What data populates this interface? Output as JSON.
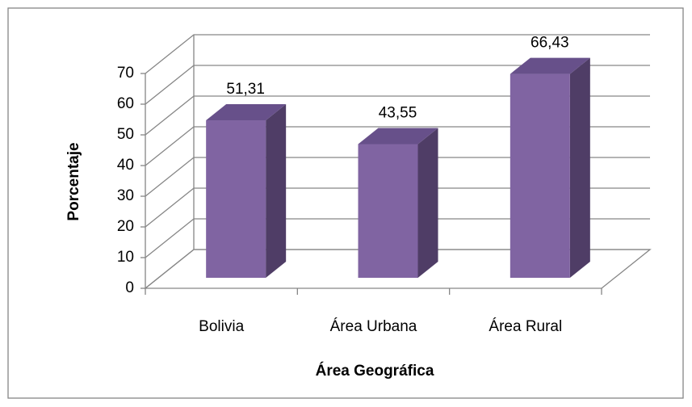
{
  "chart_data": {
    "type": "bar",
    "x_label": "Área Geográfica",
    "y_label": "Porcentaje",
    "categories": [
      "Bolivia",
      "Área Urbana",
      "Área Rural"
    ],
    "values": [
      51.31,
      43.55,
      66.43
    ],
    "value_labels": [
      "51,31",
      "43,55",
      "66,43"
    ],
    "color": "#8064a2",
    "ylim": [
      0,
      70
    ],
    "yticks": [
      0,
      10,
      20,
      30,
      40,
      50,
      60,
      70
    ],
    "grid": true
  }
}
